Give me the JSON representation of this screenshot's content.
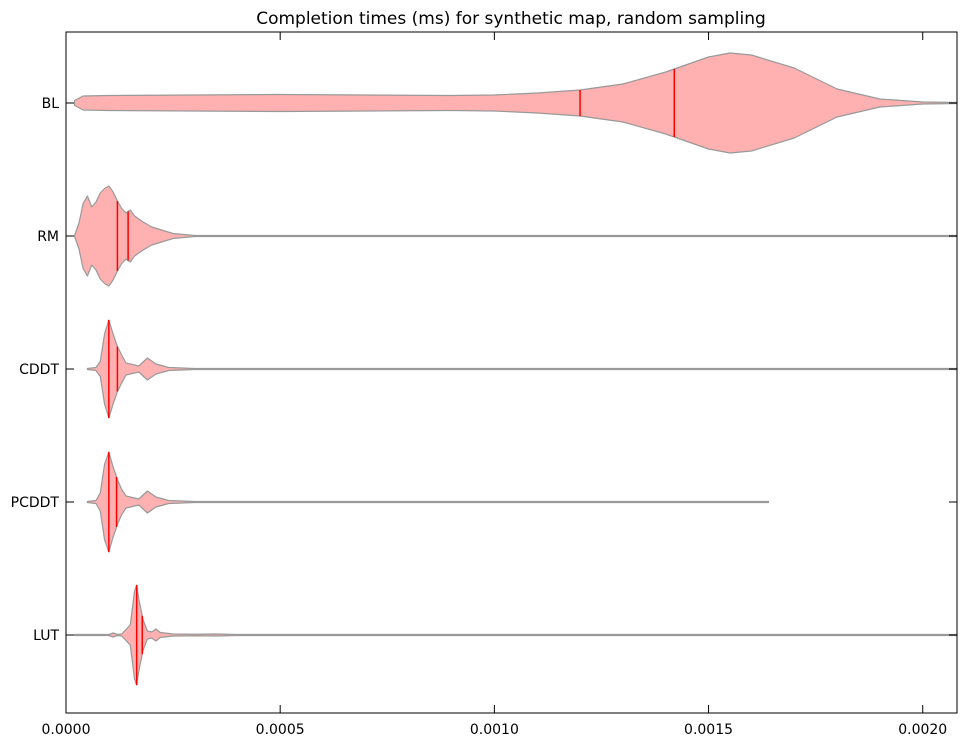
{
  "chart_data": {
    "type": "violin",
    "title": "Completion times (ms) for synthetic map, random sampling",
    "xlabel": "",
    "ylabel": "",
    "xlim": [
      0.0,
      0.00208
    ],
    "xticks": [
      "0.0000",
      "0.0005",
      "0.0010",
      "0.0015",
      "0.0020"
    ],
    "xtick_values": [
      0.0,
      0.0005,
      0.001,
      0.0015,
      0.002
    ],
    "categories": [
      "BL",
      "RM",
      "CDDT",
      "PCDDT",
      "LUT"
    ],
    "grid": false,
    "colors": {
      "fill": "#ffb1b1",
      "edge": "#999999",
      "marker": "#ff0000"
    },
    "series": [
      {
        "category": "BL",
        "min": 2e-05,
        "max": 0.00208,
        "markers": [
          0.0012,
          0.00142
        ],
        "profile": [
          [
            2e-05,
            0.05
          ],
          [
            4e-05,
            0.14
          ],
          [
            0.0001,
            0.15
          ],
          [
            0.0003,
            0.16
          ],
          [
            0.0005,
            0.17
          ],
          [
            0.0007,
            0.16
          ],
          [
            0.0009,
            0.15
          ],
          [
            0.001,
            0.16
          ],
          [
            0.0011,
            0.2
          ],
          [
            0.0012,
            0.26
          ],
          [
            0.0013,
            0.38
          ],
          [
            0.0014,
            0.62
          ],
          [
            0.0015,
            0.92
          ],
          [
            0.00155,
            1.0
          ],
          [
            0.0016,
            0.96
          ],
          [
            0.0017,
            0.7
          ],
          [
            0.0018,
            0.28
          ],
          [
            0.0019,
            0.08
          ],
          [
            0.002,
            0.02
          ],
          [
            0.00208,
            0.01
          ]
        ]
      },
      {
        "category": "RM",
        "min": 2e-05,
        "max": 0.00208,
        "markers": [
          0.00012,
          0.000145
        ],
        "profile": [
          [
            2e-05,
            0.0
          ],
          [
            3e-05,
            0.25
          ],
          [
            4e-05,
            0.65
          ],
          [
            5e-05,
            0.8
          ],
          [
            6e-05,
            0.58
          ],
          [
            7e-05,
            0.68
          ],
          [
            8e-05,
            0.86
          ],
          [
            9e-05,
            0.95
          ],
          [
            0.0001,
            1.0
          ],
          [
            0.00011,
            0.88
          ],
          [
            0.00012,
            0.7
          ],
          [
            0.00013,
            0.55
          ],
          [
            0.00014,
            0.46
          ],
          [
            0.00015,
            0.52
          ],
          [
            0.00016,
            0.4
          ],
          [
            0.00018,
            0.28
          ],
          [
            0.0002,
            0.18
          ],
          [
            0.00025,
            0.05
          ],
          [
            0.0003,
            0.01
          ],
          [
            0.00208,
            0.005
          ]
        ]
      },
      {
        "category": "CDDT",
        "min": 5e-05,
        "max": 0.00208,
        "markers": [
          0.0001,
          0.00012
        ],
        "profile": [
          [
            5e-05,
            0.0
          ],
          [
            7e-05,
            0.03
          ],
          [
            8e-05,
            0.15
          ],
          [
            9e-05,
            0.7
          ],
          [
            0.0001,
            0.98
          ],
          [
            0.00011,
            0.7
          ],
          [
            0.00012,
            0.45
          ],
          [
            0.00013,
            0.28
          ],
          [
            0.00014,
            0.12
          ],
          [
            0.00016,
            0.08
          ],
          [
            0.00017,
            0.06
          ],
          [
            0.00019,
            0.22
          ],
          [
            0.00021,
            0.1
          ],
          [
            0.00024,
            0.03
          ],
          [
            0.0003,
            0.01
          ],
          [
            0.00208,
            0.005
          ]
        ]
      },
      {
        "category": "PCDDT",
        "min": 5e-05,
        "max": 0.00164,
        "markers": [
          0.0001,
          0.000118
        ],
        "profile": [
          [
            5e-05,
            0.0
          ],
          [
            7e-05,
            0.03
          ],
          [
            8e-05,
            0.18
          ],
          [
            9e-05,
            0.75
          ],
          [
            0.0001,
            1.0
          ],
          [
            0.00011,
            0.7
          ],
          [
            0.00012,
            0.45
          ],
          [
            0.00013,
            0.25
          ],
          [
            0.00014,
            0.12
          ],
          [
            0.00016,
            0.08
          ],
          [
            0.00017,
            0.06
          ],
          [
            0.00019,
            0.22
          ],
          [
            0.00021,
            0.1
          ],
          [
            0.00024,
            0.03
          ],
          [
            0.0003,
            0.01
          ],
          [
            0.00164,
            0.005
          ]
        ]
      },
      {
        "category": "LUT",
        "min": 2e-05,
        "max": 0.00208,
        "markers": [
          0.000165,
          0.000178
        ],
        "profile": [
          [
            2e-05,
            0.005
          ],
          [
            0.0001,
            0.01
          ],
          [
            0.00011,
            0.04
          ],
          [
            0.00012,
            0.01
          ],
          [
            0.00013,
            0.02
          ],
          [
            0.00015,
            0.2
          ],
          [
            0.00016,
            0.88
          ],
          [
            0.000165,
            1.0
          ],
          [
            0.00017,
            0.72
          ],
          [
            0.00018,
            0.3
          ],
          [
            0.00019,
            0.08
          ],
          [
            0.0002,
            0.06
          ],
          [
            0.00021,
            0.12
          ],
          [
            0.00022,
            0.05
          ],
          [
            0.00025,
            0.02
          ],
          [
            0.0003,
            0.015
          ],
          [
            0.00035,
            0.02
          ],
          [
            0.0004,
            0.01
          ],
          [
            0.00045,
            0.005
          ],
          [
            0.00208,
            0.005
          ]
        ]
      }
    ]
  }
}
